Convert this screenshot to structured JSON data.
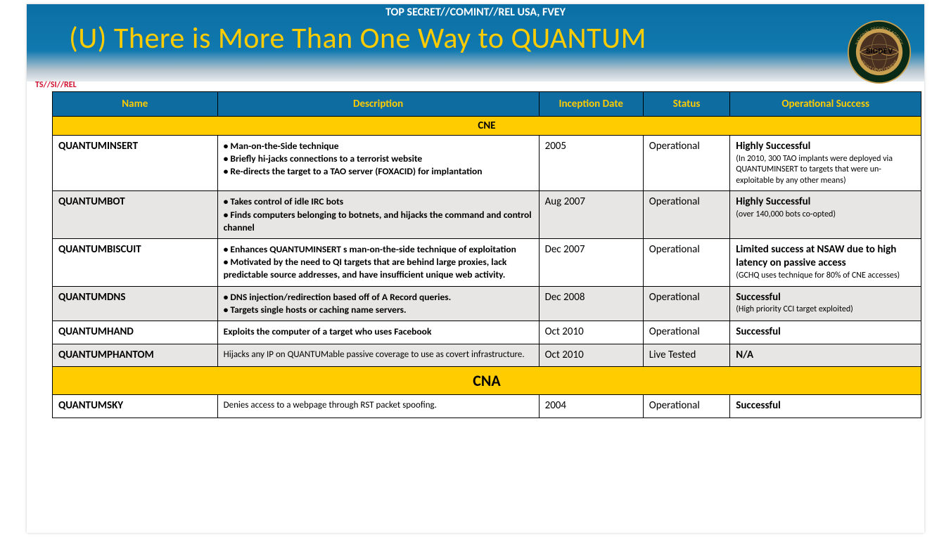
{
  "classification": "TOP SECRET//COMINT//REL USA, FVEY",
  "title": "(U) There is More Than One Way to QUANTUM",
  "sideMarking": "TS//SI//REL",
  "seal": {
    "topText": "SIGDEV",
    "outerColor": "#0a2a18",
    "innerColor": "#4a3020",
    "ringColor": "#c9a050"
  },
  "columns": [
    "Name",
    "Description",
    "Inception Date",
    "Status",
    "Operational Success"
  ],
  "sections": [
    {
      "label": "CNE",
      "class": "cne",
      "rows": [
        {
          "name": "QUANTUMINSERT",
          "desc": "• Man-on-the-Side technique\n• Briefly hi-jacks connections to a terrorist website\n• Re-directs the target to a TAO server (FOXACID) for implantation",
          "date": "2005",
          "status": "Operational",
          "successMain": "Highly Successful",
          "successSub": "(In 2010, 300 TAO implants were deployed via QUANTUMINSERT to targets that were un-exploitable by any other means)",
          "rowClass": "odd"
        },
        {
          "name": "QUANTUMBOT",
          "desc": "• Takes control of idle IRC bots\n• Finds computers belonging to botnets, and hijacks the command and control channel",
          "date": "Aug 2007",
          "status": "Operational",
          "successMain": "Highly Successful",
          "successSub": "(over 140,000 bots co-opted)",
          "rowClass": "even"
        },
        {
          "name": "QUANTUMBISCUIT",
          "desc": "• Enhances QUANTUMINSERT s man-on-the-side technique of exploitation\n• Motivated by the need to QI targets that are behind large proxies, lack predictable source addresses, and have insufficient unique web activity.",
          "date": "Dec 2007",
          "status": "Operational",
          "successMain": "Limited success at NSAW due to high latency on passive access",
          "successSub": "(GCHQ uses technique for 80% of CNE accesses)",
          "rowClass": "odd"
        },
        {
          "name": "QUANTUMDNS",
          "desc": "• DNS injection/redirection based off of A Record queries.\n• Targets single hosts or caching name servers.",
          "date": "Dec 2008",
          "status": "Operational",
          "successMain": "Successful",
          "successSub": "(High priority CCI target exploited)",
          "rowClass": "even"
        },
        {
          "name": "QUANTUMHAND",
          "desc": "Exploits the computer of a target who uses Facebook",
          "date": "Oct 2010",
          "status": "Operational",
          "successMain": "Successful",
          "successSub": "",
          "rowClass": "odd"
        },
        {
          "name": "QUANTUMPHANTOM",
          "desc": "Hijacks any IP on QUANTUMable passive coverage to use as covert infrastructure.",
          "descSmall": true,
          "date": "Oct 2010",
          "status": "Live Tested",
          "successMain": "N/A",
          "successSub": "",
          "rowClass": "even"
        }
      ]
    },
    {
      "label": "CNA",
      "class": "cna",
      "rows": [
        {
          "name": "QUANTUMSKY",
          "desc": "Denies access to a webpage through RST packet spoofing.",
          "descSmall": true,
          "date": "2004",
          "status": "Operational",
          "successMain": "Successful",
          "successSub": "",
          "rowClass": "odd"
        }
      ]
    }
  ]
}
